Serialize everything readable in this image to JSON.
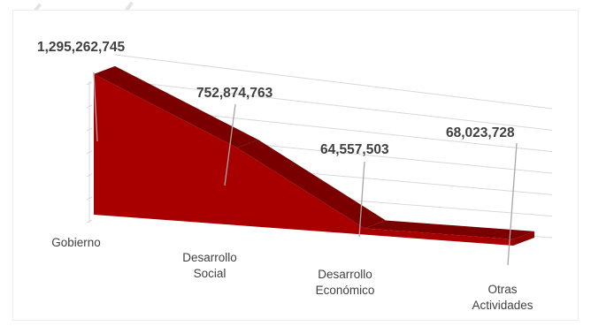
{
  "chart_data": {
    "type": "area",
    "categories": [
      "Gobierno",
      "Desarrollo Social",
      "Desarrollo Económico",
      "Otras Actividades"
    ],
    "values": [
      1295262745,
      752874763,
      64557503,
      68023728
    ],
    "data_labels": [
      "1,295,262,745",
      "752,874,763",
      "64,557,503",
      "68,023,728"
    ],
    "category_lines": [
      [
        "Gobierno"
      ],
      [
        "Desarrollo",
        "Social"
      ],
      [
        "Desarrollo",
        "Económico"
      ],
      [
        "Otras",
        "Actividades"
      ]
    ],
    "title": "",
    "xlabel": "",
    "ylabel": "",
    "grid": true,
    "legend": "none",
    "colors": {
      "front": "#a80000",
      "top": "#7a0000",
      "side": "#8c0000",
      "grid": "#d9d9d9",
      "text": "#404040",
      "leader": "#a6a6a6"
    }
  }
}
